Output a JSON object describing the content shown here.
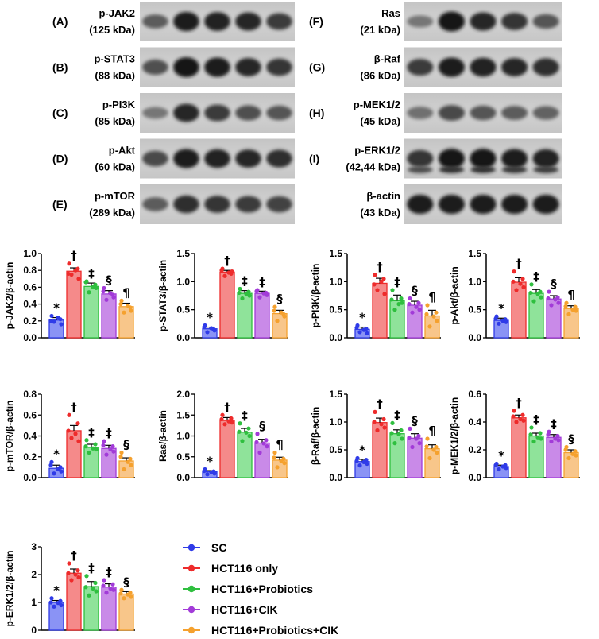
{
  "groups": [
    "SC",
    "HCT116 only",
    "HCT116+Probiotics",
    "HCT116+CIK",
    "HCT116+Probiotics+CIK"
  ],
  "group_colors": [
    "#2f3be8",
    "#ee2b2b",
    "#2fbf3f",
    "#a23bd8",
    "#f5a12e"
  ],
  "bar_fill_colors": [
    "#8a93f5",
    "#f58a8a",
    "#8fe39a",
    "#c98ae8",
    "#f8c68a"
  ],
  "blots_left": [
    {
      "letter": "(A)",
      "name": "p-JAK2",
      "kda": "(125 kDa)"
    },
    {
      "letter": "(B)",
      "name": "p-STAT3",
      "kda": "(88 kDa)"
    },
    {
      "letter": "(C)",
      "name": "p-PI3K",
      "kda": "(85 kDa)"
    },
    {
      "letter": "(D)",
      "name": "p-Akt",
      "kda": "(60 kDa)"
    },
    {
      "letter": "(E)",
      "name": "p-mTOR",
      "kda": "(289 kDa)"
    }
  ],
  "blots_right": [
    {
      "letter": "(F)",
      "name": "Ras",
      "kda": "(21 kDa)"
    },
    {
      "letter": "(G)",
      "name": "β-Raf",
      "kda": "(86 kDa)"
    },
    {
      "letter": "(H)",
      "name": "p-MEK1/2",
      "kda": "(45 kDa)"
    },
    {
      "letter": "(I)",
      "name": "p-ERK1/2",
      "kda": "(42,44 kDa)"
    },
    {
      "letter": "",
      "name": "β-actin",
      "kda": "(43 kDa)"
    }
  ],
  "legend": [
    {
      "label": "SC"
    },
    {
      "label": "HCT116 only"
    },
    {
      "label": "HCT116+Probiotics"
    },
    {
      "label": "HCT116+CIK"
    },
    {
      "label": "HCT116+Probiotics+CIK"
    }
  ],
  "chart_data": [
    {
      "type": "bar",
      "ylabel": "p-JAK2/β-actin",
      "ylim": [
        0,
        1.0
      ],
      "yticks": [
        "0.0",
        "0.2",
        "0.4",
        "0.6",
        "0.8",
        "1.0"
      ],
      "values": [
        0.21,
        0.79,
        0.61,
        0.52,
        0.37
      ],
      "errors": [
        0.03,
        0.04,
        0.04,
        0.04,
        0.04
      ],
      "marks": [
        "*",
        "†",
        "‡",
        "§",
        "¶"
      ],
      "points": [
        [
          0.26,
          0.22,
          0.19,
          0.16,
          0.2,
          0.24
        ],
        [
          0.88,
          0.82,
          0.75,
          0.7,
          0.76,
          0.8
        ],
        [
          0.67,
          0.63,
          0.54,
          0.59,
          0.66,
          0.6
        ],
        [
          0.59,
          0.51,
          0.45,
          0.48,
          0.55,
          0.53
        ],
        [
          0.44,
          0.36,
          0.3,
          0.32,
          0.4,
          0.38
        ]
      ]
    },
    {
      "type": "bar",
      "ylabel": "p-STAT3/β-actin",
      "ylim": [
        0,
        1.5
      ],
      "yticks": [
        "0.0",
        "0.5",
        "1.0",
        "1.5"
      ],
      "values": [
        0.16,
        1.17,
        0.79,
        0.79,
        0.43
      ],
      "errors": [
        0.03,
        0.03,
        0.05,
        0.04,
        0.06
      ],
      "marks": [
        "*",
        "†",
        "‡",
        "‡",
        "§"
      ],
      "points": [
        [
          0.22,
          0.15,
          0.1,
          0.13,
          0.19,
          0.17
        ],
        [
          1.23,
          1.14,
          1.1,
          1.18,
          1.2,
          1.16
        ],
        [
          0.87,
          0.82,
          0.7,
          0.75,
          0.8,
          0.78
        ],
        [
          0.85,
          0.8,
          0.72,
          0.76,
          0.83,
          0.79
        ],
        [
          0.55,
          0.42,
          0.3,
          0.38,
          0.48,
          0.45
        ]
      ]
    },
    {
      "type": "bar",
      "ylabel": "p-PI3K/β-actin",
      "ylim": [
        0,
        1.5
      ],
      "yticks": [
        "0.0",
        "0.5",
        "1.0",
        "1.5"
      ],
      "values": [
        0.15,
        0.97,
        0.66,
        0.58,
        0.39
      ],
      "errors": [
        0.04,
        0.09,
        0.1,
        0.07,
        0.1
      ],
      "marks": [
        "*",
        "†",
        "‡",
        "§",
        "¶"
      ],
      "points": [
        [
          0.22,
          0.16,
          0.1,
          0.08,
          0.18,
          0.14
        ],
        [
          1.12,
          1.05,
          0.85,
          0.78,
          0.95,
          1.0
        ],
        [
          0.85,
          0.7,
          0.5,
          0.62,
          0.68,
          0.6
        ],
        [
          0.7,
          0.62,
          0.45,
          0.5,
          0.6,
          0.55
        ],
        [
          0.58,
          0.45,
          0.2,
          0.3,
          0.42,
          0.38
        ]
      ]
    },
    {
      "type": "bar",
      "ylabel": "p-Akt/β-actin",
      "ylim": [
        0,
        1.5
      ],
      "yticks": [
        "0.0",
        "0.5",
        "1.0",
        "1.5"
      ],
      "values": [
        0.31,
        0.99,
        0.79,
        0.69,
        0.52
      ],
      "errors": [
        0.04,
        0.08,
        0.07,
        0.06,
        0.05
      ],
      "marks": [
        "*",
        "†",
        "‡",
        "§",
        "¶"
      ],
      "points": [
        [
          0.38,
          0.33,
          0.25,
          0.28,
          0.34,
          0.3
        ],
        [
          1.18,
          1.05,
          0.85,
          0.9,
          1.0,
          0.96
        ],
        [
          0.95,
          0.82,
          0.65,
          0.72,
          0.8,
          0.78
        ],
        [
          0.82,
          0.72,
          0.58,
          0.62,
          0.7,
          0.68
        ],
        [
          0.62,
          0.55,
          0.42,
          0.48,
          0.56,
          0.5
        ]
      ]
    },
    {
      "type": "bar",
      "ylabel": "p-mTOR/β-actin",
      "ylim": [
        0,
        0.8
      ],
      "yticks": [
        "0.0",
        "0.2",
        "0.4",
        "0.6",
        "0.8"
      ],
      "values": [
        0.09,
        0.45,
        0.29,
        0.28,
        0.16
      ],
      "errors": [
        0.03,
        0.05,
        0.03,
        0.03,
        0.03
      ],
      "marks": [
        "*",
        "†",
        "‡",
        "‡",
        "§"
      ],
      "points": [
        [
          0.15,
          0.1,
          0.04,
          0.06,
          0.12,
          0.08
        ],
        [
          0.6,
          0.52,
          0.38,
          0.35,
          0.45,
          0.42
        ],
        [
          0.36,
          0.32,
          0.24,
          0.27,
          0.3,
          0.28
        ],
        [
          0.35,
          0.3,
          0.22,
          0.25,
          0.31,
          0.27
        ],
        [
          0.24,
          0.18,
          0.08,
          0.12,
          0.2,
          0.15
        ]
      ]
    },
    {
      "type": "bar",
      "ylabel": "Ras/β-actin",
      "ylim": [
        0,
        2.0
      ],
      "yticks": [
        "0.0",
        "0.5",
        "1.0",
        "1.5",
        "2.0"
      ],
      "values": [
        0.14,
        1.37,
        1.09,
        0.83,
        0.42
      ],
      "errors": [
        0.03,
        0.07,
        0.09,
        0.09,
        0.07
      ],
      "marks": [
        "*",
        "†",
        "‡",
        "§",
        "¶"
      ],
      "points": [
        [
          0.2,
          0.15,
          0.08,
          0.1,
          0.16,
          0.13
        ],
        [
          1.5,
          1.42,
          1.28,
          1.32,
          1.4,
          1.35
        ],
        [
          1.3,
          1.18,
          0.88,
          1.0,
          1.1,
          1.08
        ],
        [
          1.05,
          0.9,
          0.6,
          0.75,
          0.85,
          0.82
        ],
        [
          0.6,
          0.45,
          0.25,
          0.35,
          0.48,
          0.4
        ]
      ]
    },
    {
      "type": "bar",
      "ylabel": "β-Raf/β-actin",
      "ylim": [
        0,
        1.5
      ],
      "yticks": [
        "0.0",
        "0.5",
        "1.0",
        "1.5"
      ],
      "values": [
        0.29,
        0.99,
        0.79,
        0.71,
        0.52
      ],
      "errors": [
        0.04,
        0.08,
        0.07,
        0.08,
        0.07
      ],
      "marks": [
        "*",
        "†",
        "‡",
        "§",
        "¶"
      ],
      "points": [
        [
          0.35,
          0.32,
          0.22,
          0.25,
          0.3,
          0.28
        ],
        [
          1.18,
          1.05,
          0.85,
          0.9,
          1.0,
          0.96
        ],
        [
          0.98,
          0.85,
          0.62,
          0.7,
          0.8,
          0.78
        ],
        [
          0.88,
          0.75,
          0.55,
          0.62,
          0.72,
          0.7
        ],
        [
          0.7,
          0.55,
          0.35,
          0.45,
          0.56,
          0.5
        ]
      ]
    },
    {
      "type": "bar",
      "ylabel": "p-MEK1/2/β-actin",
      "ylim": [
        0,
        0.6
      ],
      "yticks": [
        "0.0",
        "0.2",
        "0.4",
        "0.6"
      ],
      "values": [
        0.08,
        0.43,
        0.3,
        0.29,
        0.18
      ],
      "errors": [
        0.01,
        0.02,
        0.02,
        0.02,
        0.02
      ],
      "marks": [
        "*",
        "†",
        "‡",
        "‡",
        "§"
      ],
      "points": [
        [
          0.1,
          0.09,
          0.06,
          0.07,
          0.09,
          0.08
        ],
        [
          0.48,
          0.45,
          0.4,
          0.41,
          0.44,
          0.42
        ],
        [
          0.36,
          0.32,
          0.26,
          0.28,
          0.31,
          0.29
        ],
        [
          0.33,
          0.3,
          0.26,
          0.27,
          0.31,
          0.28
        ],
        [
          0.22,
          0.19,
          0.14,
          0.16,
          0.2,
          0.17
        ]
      ]
    },
    {
      "type": "bar",
      "ylabel": "p-ERK1/2/β-actin",
      "ylim": [
        0,
        3
      ],
      "yticks": [
        "0",
        "1",
        "2",
        "3"
      ],
      "values": [
        1.0,
        2.05,
        1.57,
        1.55,
        1.3
      ],
      "errors": [
        0.07,
        0.15,
        0.18,
        0.12,
        0.09
      ],
      "marks": [
        "*",
        "†",
        "‡",
        "‡",
        "§"
      ],
      "points": [
        [
          1.15,
          1.05,
          0.85,
          0.9,
          1.0,
          0.98
        ],
        [
          2.4,
          2.15,
          1.8,
          1.9,
          2.05,
          2.0
        ],
        [
          1.95,
          1.7,
          1.25,
          1.4,
          1.55,
          1.5
        ],
        [
          1.8,
          1.65,
          1.35,
          1.45,
          1.6,
          1.5
        ],
        [
          1.45,
          1.35,
          1.15,
          1.2,
          1.32,
          1.28
        ]
      ]
    }
  ]
}
